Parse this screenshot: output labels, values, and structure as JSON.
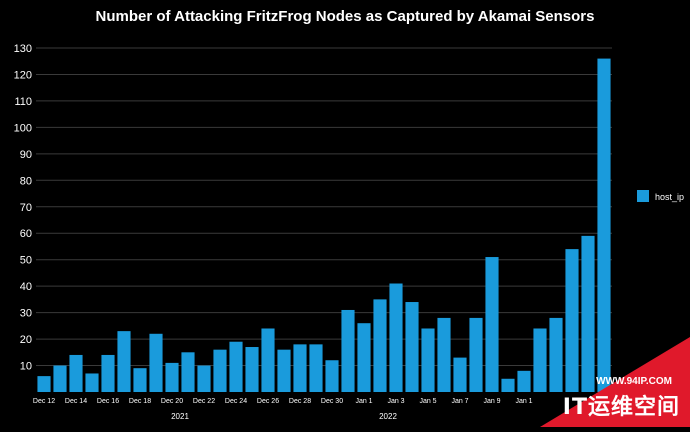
{
  "chart_data": {
    "type": "bar",
    "title": "Number of Attacking FritzFrog Nodes as Captured by Akamai Sensors",
    "xlabel": "",
    "ylabel": "",
    "ylim": [
      0,
      130
    ],
    "yticks": [
      10,
      20,
      30,
      40,
      50,
      60,
      70,
      80,
      90,
      100,
      110,
      120,
      130
    ],
    "grid": true,
    "legend": "right",
    "bar_color": "#1a9bdc",
    "series": [
      {
        "name": "host_ip",
        "values": [
          6,
          10,
          14,
          7,
          14,
          23,
          9,
          22,
          11,
          15,
          10,
          16,
          19,
          17,
          24,
          16,
          18,
          18,
          12,
          31,
          26,
          35,
          41,
          34,
          24,
          28,
          13,
          28,
          51,
          5,
          8,
          24,
          28,
          54,
          59,
          126
        ]
      }
    ],
    "xtick_labels": [
      {
        "index": 0,
        "label": "Dec 12"
      },
      {
        "index": 2,
        "label": "Dec 14"
      },
      {
        "index": 4,
        "label": "Dec 16"
      },
      {
        "index": 6,
        "label": "Dec 18"
      },
      {
        "index": 8,
        "label": "Dec 20"
      },
      {
        "index": 10,
        "label": "Dec 22"
      },
      {
        "index": 12,
        "label": "Dec 24"
      },
      {
        "index": 14,
        "label": "Dec 26"
      },
      {
        "index": 16,
        "label": "Dec 28"
      },
      {
        "index": 18,
        "label": "Dec 30"
      },
      {
        "index": 20,
        "label": "Jan 1"
      },
      {
        "index": 22,
        "label": "Jan 3"
      },
      {
        "index": 24,
        "label": "Jan 5"
      },
      {
        "index": 26,
        "label": "Jan 7"
      },
      {
        "index": 28,
        "label": "Jan 9"
      },
      {
        "index": 30,
        "label": "Jan 1"
      }
    ],
    "year_labels": [
      {
        "index": 8.5,
        "label": "2021"
      },
      {
        "index": 21.5,
        "label": "2022"
      }
    ]
  },
  "watermark": {
    "url": "WWW.94IP.COM",
    "text": "IT运维空间",
    "color": "#e0192b"
  }
}
